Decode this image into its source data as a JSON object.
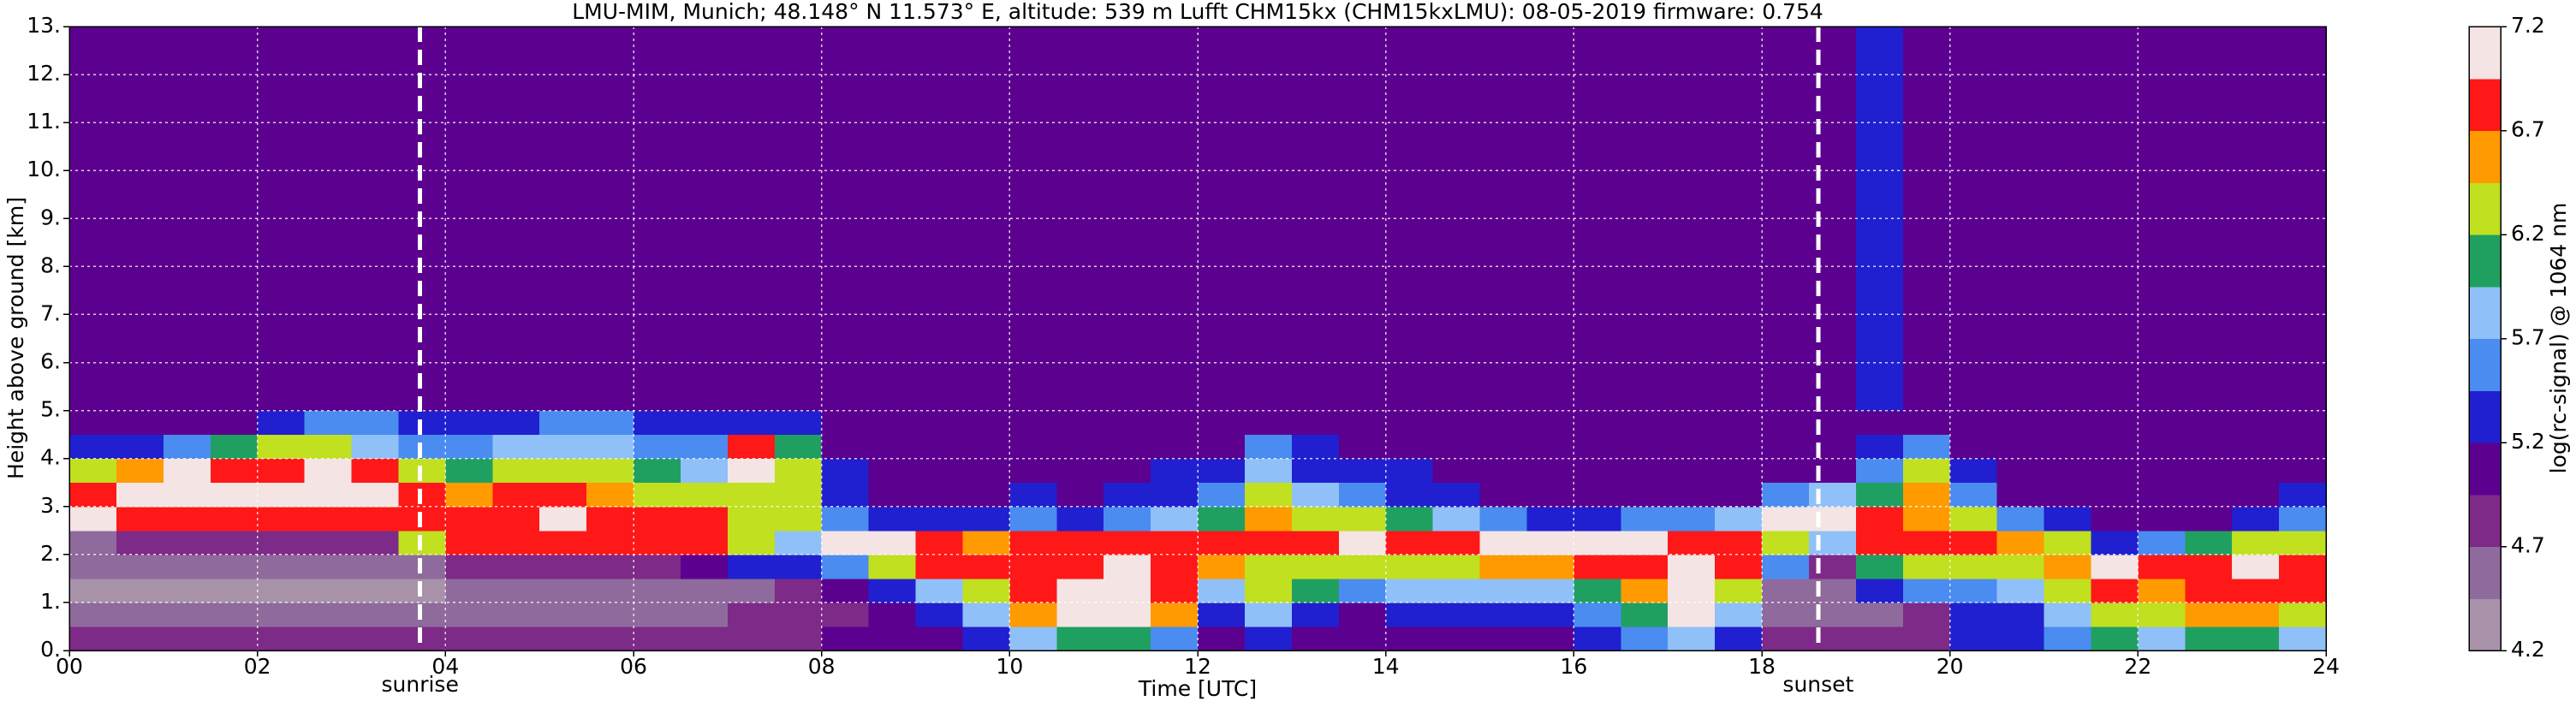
{
  "chart_data": {
    "type": "heatmap",
    "title": "LMU-MIM, Munich; 48.148° N 11.573° E, altitude: 539 m    Lufft CHM15kx (CHM15kxLMU): 08-05-2019    firmware: 0.754",
    "xlabel": "Time [UTC]",
    "ylabel": "Height above ground [km]",
    "colorbar_label": "log(rc-signal) @ 1064 nm",
    "xlim": [
      0,
      24
    ],
    "ylim": [
      0,
      13
    ],
    "xticks": [
      {
        "value": 0,
        "label": "00"
      },
      {
        "value": 2,
        "label": "02"
      },
      {
        "value": 4,
        "label": "04"
      },
      {
        "value": 6,
        "label": "06"
      },
      {
        "value": 8,
        "label": "08"
      },
      {
        "value": 10,
        "label": "10"
      },
      {
        "value": 12,
        "label": "12"
      },
      {
        "value": 14,
        "label": "14"
      },
      {
        "value": 16,
        "label": "16"
      },
      {
        "value": 18,
        "label": "18"
      },
      {
        "value": 20,
        "label": "20"
      },
      {
        "value": 22,
        "label": "22"
      },
      {
        "value": 24,
        "label": "24"
      }
    ],
    "yticks": [
      {
        "value": 0,
        "label": "0."
      },
      {
        "value": 1,
        "label": "1."
      },
      {
        "value": 2,
        "label": "2."
      },
      {
        "value": 3,
        "label": "3."
      },
      {
        "value": 4,
        "label": "4."
      },
      {
        "value": 5,
        "label": "5."
      },
      {
        "value": 6,
        "label": "6."
      },
      {
        "value": 7,
        "label": "7."
      },
      {
        "value": 8,
        "label": "8."
      },
      {
        "value": 9,
        "label": "9."
      },
      {
        "value": 10,
        "label": "10."
      },
      {
        "value": 11,
        "label": "11."
      },
      {
        "value": 12,
        "label": "12."
      },
      {
        "value": 13,
        "label": "13."
      }
    ],
    "grid": true,
    "clim": [
      4.2,
      7.2
    ],
    "cticks": [
      4.2,
      4.7,
      5.2,
      5.7,
      6.2,
      6.7,
      7.2
    ],
    "colormap": [
      "#a892aa",
      "#8f6a9c",
      "#7e2a88",
      "#5c0090",
      "#2020d0",
      "#4a8cf0",
      "#90c0f8",
      "#20a060",
      "#c0e020",
      "#ff9a00",
      "#ff1818",
      "#f4e4e4"
    ],
    "annotations": [
      {
        "x": 3.73,
        "label": "sunrise"
      },
      {
        "x": 18.6,
        "label": "sunset"
      }
    ],
    "x_edges": [
      0,
      0.5,
      1,
      1.5,
      2,
      2.5,
      3,
      3.5,
      4,
      4.5,
      5,
      5.5,
      6,
      6.5,
      7,
      7.5,
      8,
      8.5,
      9,
      9.5,
      10,
      10.5,
      11,
      11.5,
      12,
      12.5,
      13,
      13.5,
      14,
      14.5,
      15,
      15.5,
      16,
      16.5,
      17,
      17.5,
      18,
      18.5,
      19,
      19.5,
      20,
      20.5,
      21,
      21.5,
      22,
      22.5,
      23,
      23.5,
      24
    ],
    "y_edges": [
      0,
      0.5,
      1,
      1.5,
      2,
      2.5,
      3,
      3.5,
      4,
      4.5,
      5,
      13
    ],
    "z": [
      [
        4.8,
        4.8,
        4.7,
        4.7,
        4.7,
        4.7,
        4.7,
        4.7,
        4.7,
        4.7,
        4.7,
        4.7,
        4.7,
        4.8,
        4.8,
        4.9,
        5.0,
        5.0,
        5.1,
        5.2,
        5.7,
        6.0,
        6.0,
        5.6,
        5.1,
        5.3,
        5.0,
        5.0,
        5.0,
        5.0,
        5.0,
        5.1,
        5.2,
        5.5,
        5.8,
        5.2,
        4.8,
        4.8,
        4.8,
        4.9,
        5.2,
        5.4,
        5.6,
        6.0,
        5.9,
        6.1,
        6.0,
        5.9
      ],
      [
        4.6,
        4.6,
        4.5,
        4.5,
        4.5,
        4.5,
        4.5,
        4.5,
        4.5,
        4.5,
        4.5,
        4.5,
        4.5,
        4.6,
        4.7,
        4.8,
        4.9,
        5.0,
        5.3,
        5.7,
        6.5,
        7.1,
        7.1,
        6.5,
        5.4,
        5.7,
        5.3,
        5.1,
        5.2,
        5.3,
        5.2,
        5.4,
        5.5,
        6.0,
        7.0,
        5.8,
        4.5,
        4.5,
        4.6,
        4.8,
        5.2,
        5.4,
        5.7,
        6.3,
        6.2,
        6.6,
        6.5,
        6.3
      ],
      [
        4.4,
        4.4,
        4.4,
        4.4,
        4.4,
        4.4,
        4.4,
        4.4,
        4.5,
        4.5,
        4.5,
        4.5,
        4.5,
        4.6,
        4.6,
        4.8,
        5.0,
        5.2,
        5.8,
        6.3,
        6.9,
        7.1,
        7.1,
        6.8,
        5.8,
        6.2,
        6.0,
        5.6,
        5.8,
        5.9,
        5.7,
        5.8,
        6.0,
        6.6,
        7.1,
        6.4,
        4.6,
        4.5,
        5.2,
        5.6,
        5.6,
        5.8,
        6.2,
        6.8,
        6.6,
        6.9,
        6.9,
        6.7
      ],
      [
        4.5,
        4.5,
        4.5,
        4.5,
        4.5,
        4.5,
        4.6,
        4.6,
        4.7,
        4.7,
        4.8,
        4.8,
        4.8,
        5.0,
        5.2,
        5.4,
        5.6,
        6.4,
        6.8,
        6.8,
        6.9,
        6.9,
        7.0,
        6.9,
        6.5,
        6.4,
        6.3,
        6.2,
        6.3,
        6.4,
        6.5,
        6.6,
        6.7,
        6.9,
        7.1,
        6.9,
        5.6,
        4.9,
        6.1,
        6.2,
        6.3,
        6.3,
        6.5,
        7.1,
        6.8,
        6.9,
        7.0,
        6.8
      ],
      [
        4.6,
        4.7,
        4.8,
        4.8,
        4.9,
        4.8,
        4.9,
        6.4,
        6.8,
        6.9,
        6.9,
        6.9,
        6.8,
        6.9,
        6.3,
        5.8,
        7.2,
        7.0,
        6.7,
        6.6,
        6.9,
        6.8,
        6.9,
        6.8,
        6.9,
        6.9,
        6.9,
        7.0,
        6.9,
        6.9,
        7.0,
        7.0,
        7.0,
        7.0,
        6.9,
        6.9,
        6.2,
        5.8,
        6.7,
        6.8,
        6.8,
        6.6,
        6.4,
        5.2,
        5.6,
        6.0,
        6.4,
        6.4
      ],
      [
        7.0,
        6.8,
        6.9,
        6.9,
        6.8,
        6.9,
        6.8,
        6.8,
        6.9,
        6.9,
        7.0,
        6.9,
        6.8,
        6.7,
        6.4,
        6.2,
        5.6,
        5.4,
        5.3,
        5.2,
        5.6,
        5.4,
        5.6,
        5.9,
        6.1,
        6.5,
        6.3,
        6.2,
        6.0,
        5.8,
        5.6,
        5.4,
        5.4,
        5.5,
        5.6,
        5.8,
        7.0,
        7.0,
        6.8,
        6.6,
        6.2,
        5.6,
        5.2,
        5.0,
        5.0,
        5.1,
        5.3,
        5.6
      ],
      [
        6.9,
        7.0,
        7.1,
        7.0,
        7.0,
        7.1,
        7.0,
        6.9,
        6.6,
        6.7,
        6.8,
        6.6,
        6.3,
        6.2,
        6.4,
        6.3,
        5.4,
        5.1,
        5.0,
        5.0,
        5.2,
        5.1,
        5.2,
        5.4,
        5.6,
        6.2,
        5.8,
        5.6,
        5.4,
        5.2,
        5.1,
        5.1,
        5.0,
        5.0,
        5.0,
        5.1,
        5.6,
        5.7,
        6.0,
        6.5,
        5.6,
        5.1,
        5.0,
        5.0,
        5.0,
        5.0,
        5.1,
        5.2
      ],
      [
        6.3,
        6.6,
        7.0,
        6.9,
        6.8,
        7.0,
        6.7,
        6.4,
        6.1,
        6.3,
        6.4,
        6.3,
        6.0,
        5.9,
        7.1,
        6.4,
        5.2,
        5.0,
        5.0,
        5.0,
        5.1,
        5.0,
        5.1,
        5.2,
        5.3,
        5.8,
        5.4,
        5.3,
        5.2,
        5.1,
        5.1,
        5.0,
        5.0,
        5.0,
        5.0,
        5.0,
        5.1,
        5.1,
        5.6,
        6.2,
        5.4,
        5.0,
        5.0,
        5.0,
        5.0,
        5.0,
        5.0,
        5.0
      ],
      [
        5.2,
        5.2,
        5.5,
        6.0,
        6.4,
        6.3,
        5.9,
        5.6,
        5.6,
        5.7,
        5.8,
        5.7,
        5.6,
        5.6,
        6.9,
        6.0,
        5.1,
        5.0,
        5.0,
        5.0,
        5.0,
        5.0,
        5.1,
        5.0,
        5.1,
        5.5,
        5.2,
        5.1,
        5.0,
        5.0,
        5.0,
        5.0,
        5.0,
        5.0,
        5.0,
        5.0,
        5.0,
        5.0,
        5.3,
        5.6,
        5.1,
        5.0,
        5.0,
        5.0,
        5.0,
        5.0,
        5.0,
        5.0
      ],
      [
        5.0,
        5.0,
        5.0,
        5.1,
        5.4,
        5.6,
        5.6,
        5.2,
        5.3,
        5.4,
        5.5,
        5.5,
        5.4,
        5.3,
        5.4,
        5.2,
        5.0,
        5.0,
        5.0,
        5.0,
        5.0,
        5.0,
        5.0,
        5.0,
        5.0,
        5.1,
        5.0,
        5.0,
        5.0,
        5.0,
        5.0,
        5.0,
        5.0,
        5.0,
        5.0,
        5.0,
        5.0,
        5.0,
        5.0,
        5.1,
        5.0,
        5.0,
        5.0,
        5.0,
        5.0,
        5.0,
        5.0,
        5.0
      ],
      [
        5.0,
        5.0,
        5.0,
        5.0,
        5.0,
        5.0,
        5.0,
        5.0,
        5.0,
        5.0,
        5.0,
        5.0,
        5.0,
        5.0,
        5.0,
        5.0,
        5.0,
        5.0,
        5.0,
        5.0,
        5.0,
        5.0,
        5.0,
        5.0,
        5.0,
        5.0,
        5.0,
        5.0,
        5.0,
        5.0,
        5.0,
        5.0,
        5.0,
        5.0,
        5.0,
        5.0,
        5.0,
        5.0,
        5.4,
        5.0,
        5.0,
        5.0,
        5.0,
        5.0,
        5.0,
        5.0,
        5.0,
        5.0
      ]
    ]
  }
}
